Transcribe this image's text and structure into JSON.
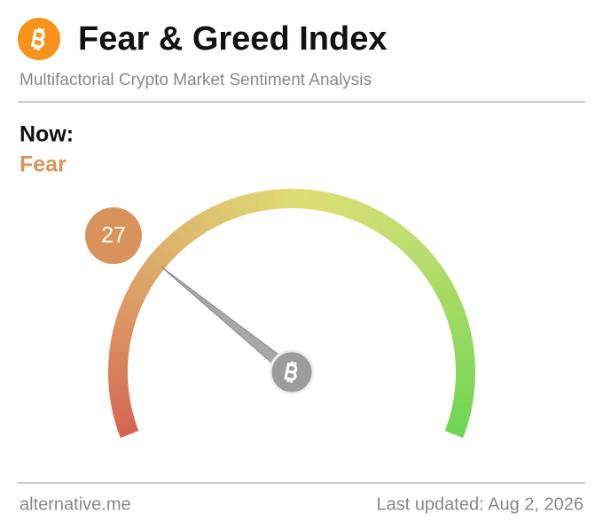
{
  "chart_data": {
    "type": "gauge",
    "title": "Fear & Greed Index",
    "subtitle": "Multifactorial Crypto Market Sentiment Analysis",
    "now_label": "Now:",
    "classification": "Fear",
    "value": 27,
    "value_range": [
      0,
      100
    ],
    "color": "#d9935a",
    "source": "alternative.me",
    "updated": "Last updated: Aug 2, 2026"
  }
}
